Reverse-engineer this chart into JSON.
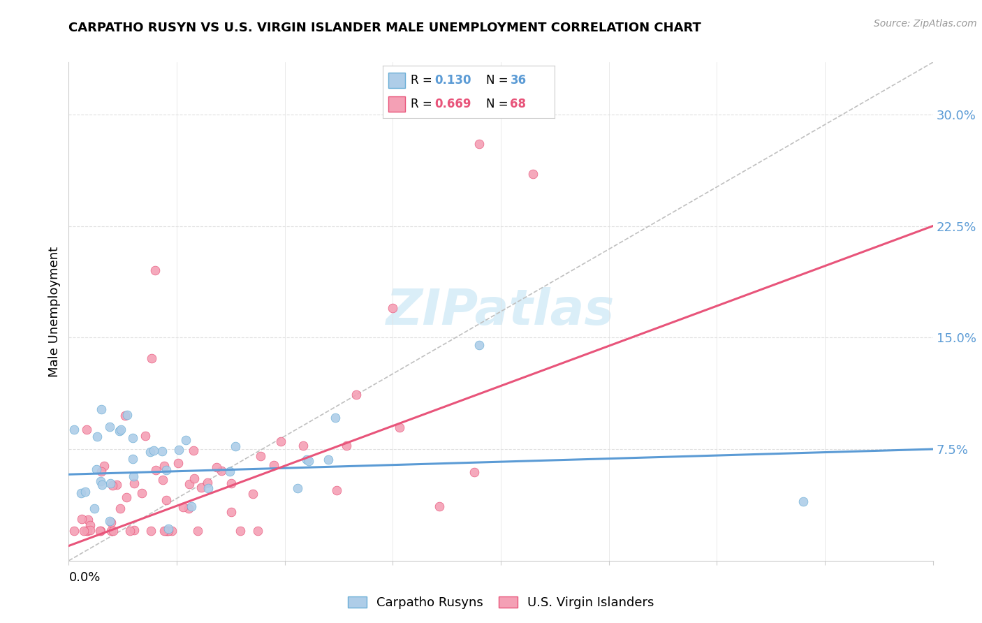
{
  "title": "CARPATHO RUSYN VS U.S. VIRGIN ISLANDER MALE UNEMPLOYMENT CORRELATION CHART",
  "source": "Source: ZipAtlas.com",
  "ylabel": "Male Unemployment",
  "ytick_vals": [
    0.075,
    0.15,
    0.225,
    0.3
  ],
  "ytick_labels": [
    "7.5%",
    "15.0%",
    "22.5%",
    "30.0%"
  ],
  "xlim": [
    0.0,
    0.08
  ],
  "ylim": [
    0.0,
    0.335
  ],
  "legend_R1": "R = 0.130",
  "legend_N1": "N = 36",
  "legend_R2": "R = 0.669",
  "legend_N2": "N = 68",
  "color_blue_fill": "#aecde8",
  "color_blue_edge": "#6aaed6",
  "color_blue_line": "#5b9bd5",
  "color_pink_fill": "#f4a0b5",
  "color_pink_edge": "#e8547a",
  "color_pink_line": "#e8547a",
  "color_diag": "#c0c0c0",
  "color_grid": "#e0e0e0",
  "watermark_color": "#daeef8",
  "blue_trend_x0": 0.0,
  "blue_trend_y0": 0.058,
  "blue_trend_x1": 0.08,
  "blue_trend_y1": 0.075,
  "pink_trend_x0": 0.0,
  "pink_trend_y0": 0.01,
  "pink_trend_x1": 0.08,
  "pink_trend_y1": 0.225
}
